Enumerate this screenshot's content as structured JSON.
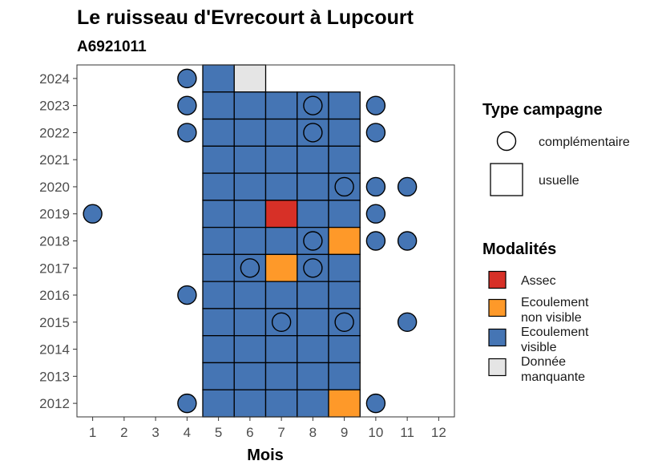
{
  "chart_data": {
    "type": "heatmap",
    "title": "Le ruisseau d'Evrecourt à Lupcourt",
    "subtitle": "A6921011",
    "xlabel": "Mois",
    "ylabel": "",
    "x_ticks": [
      "1",
      "2",
      "3",
      "4",
      "5",
      "6",
      "7",
      "8",
      "9",
      "10",
      "11",
      "12"
    ],
    "y_ticks": [
      "2024",
      "2023",
      "2022",
      "2021",
      "2020",
      "2019",
      "2018",
      "2017",
      "2016",
      "2015",
      "2014",
      "2013",
      "2012"
    ],
    "xlim": [
      0.5,
      12.5
    ],
    "ylim": [
      2011.5,
      2024.5
    ],
    "legend_campagne": {
      "title": "Type campagne",
      "placement": "right",
      "entries": [
        {
          "key": "complementaire",
          "label": "complémentaire",
          "shape": "circle"
        },
        {
          "key": "usuelle",
          "label": "usuelle",
          "shape": "square"
        }
      ]
    },
    "legend_modalites": {
      "title": "Modalités",
      "placement": "right",
      "entries": [
        {
          "key": "assec",
          "lines": [
            "Assec"
          ],
          "color": "#d73027"
        },
        {
          "key": "ecoulement_non_visible",
          "lines": [
            "Ecoulement",
            "non visible"
          ],
          "color": "#fe9929"
        },
        {
          "key": "ecoulement_visible",
          "lines": [
            "Ecoulement",
            "visible"
          ],
          "color": "#4575b4"
        },
        {
          "key": "donnee_manquante",
          "lines": [
            "Donnée",
            "manquante"
          ],
          "color": "#e5e5e5"
        }
      ]
    },
    "usuelle": [
      {
        "year": 2024,
        "months": [
          5
        ],
        "status": "ecoulement_visible"
      },
      {
        "year": 2024,
        "months": [
          6
        ],
        "status": "donnee_manquante"
      },
      {
        "year": 2023,
        "months": [
          5,
          6,
          7,
          8,
          9
        ],
        "status": "ecoulement_visible"
      },
      {
        "year": 2022,
        "months": [
          5,
          6,
          7,
          8,
          9
        ],
        "status": "ecoulement_visible"
      },
      {
        "year": 2021,
        "months": [
          5,
          6,
          7,
          8,
          9
        ],
        "status": "ecoulement_visible"
      },
      {
        "year": 2020,
        "months": [
          5,
          6,
          7,
          8,
          9
        ],
        "status": "ecoulement_visible"
      },
      {
        "year": 2019,
        "months": [
          5,
          6,
          8,
          9
        ],
        "status": "ecoulement_visible"
      },
      {
        "year": 2019,
        "months": [
          7
        ],
        "status": "assec"
      },
      {
        "year": 2018,
        "months": [
          5,
          6,
          7,
          8
        ],
        "status": "ecoulement_visible"
      },
      {
        "year": 2018,
        "months": [
          9
        ],
        "status": "ecoulement_non_visible"
      },
      {
        "year": 2017,
        "months": [
          5,
          6,
          8,
          9
        ],
        "status": "ecoulement_visible"
      },
      {
        "year": 2017,
        "months": [
          7
        ],
        "status": "ecoulement_non_visible"
      },
      {
        "year": 2016,
        "months": [
          5,
          6,
          7,
          8,
          9
        ],
        "status": "ecoulement_visible"
      },
      {
        "year": 2015,
        "months": [
          5,
          6,
          7,
          8,
          9
        ],
        "status": "ecoulement_visible"
      },
      {
        "year": 2014,
        "months": [
          5,
          6,
          7,
          8,
          9
        ],
        "status": "ecoulement_visible"
      },
      {
        "year": 2013,
        "months": [
          5,
          6,
          7,
          8,
          9
        ],
        "status": "ecoulement_visible"
      },
      {
        "year": 2012,
        "months": [
          5,
          6,
          7,
          8
        ],
        "status": "ecoulement_visible"
      },
      {
        "year": 2012,
        "months": [
          9
        ],
        "status": "ecoulement_non_visible"
      }
    ],
    "complementaire": [
      {
        "year": 2024,
        "months": [
          4
        ],
        "status": "ecoulement_visible"
      },
      {
        "year": 2023,
        "months": [
          4,
          10
        ],
        "status": "ecoulement_visible"
      },
      {
        "year": 2023,
        "months": [
          8
        ],
        "status": "ecoulement_visible"
      },
      {
        "year": 2022,
        "months": [
          4,
          10
        ],
        "status": "ecoulement_visible"
      },
      {
        "year": 2022,
        "months": [
          8
        ],
        "status": "ecoulement_visible"
      },
      {
        "year": 2020,
        "months": [
          9,
          10,
          11
        ],
        "status": "ecoulement_visible"
      },
      {
        "year": 2019,
        "months": [
          1,
          10
        ],
        "status": "ecoulement_visible"
      },
      {
        "year": 2018,
        "months": [
          8,
          10,
          11
        ],
        "status": "ecoulement_visible"
      },
      {
        "year": 2017,
        "months": [
          6,
          8
        ],
        "status": "ecoulement_visible"
      },
      {
        "year": 2016,
        "months": [
          4
        ],
        "status": "ecoulement_visible"
      },
      {
        "year": 2015,
        "months": [
          7,
          9,
          11
        ],
        "status": "ecoulement_visible"
      },
      {
        "year": 2012,
        "months": [
          4,
          10
        ],
        "status": "ecoulement_visible"
      }
    ]
  }
}
